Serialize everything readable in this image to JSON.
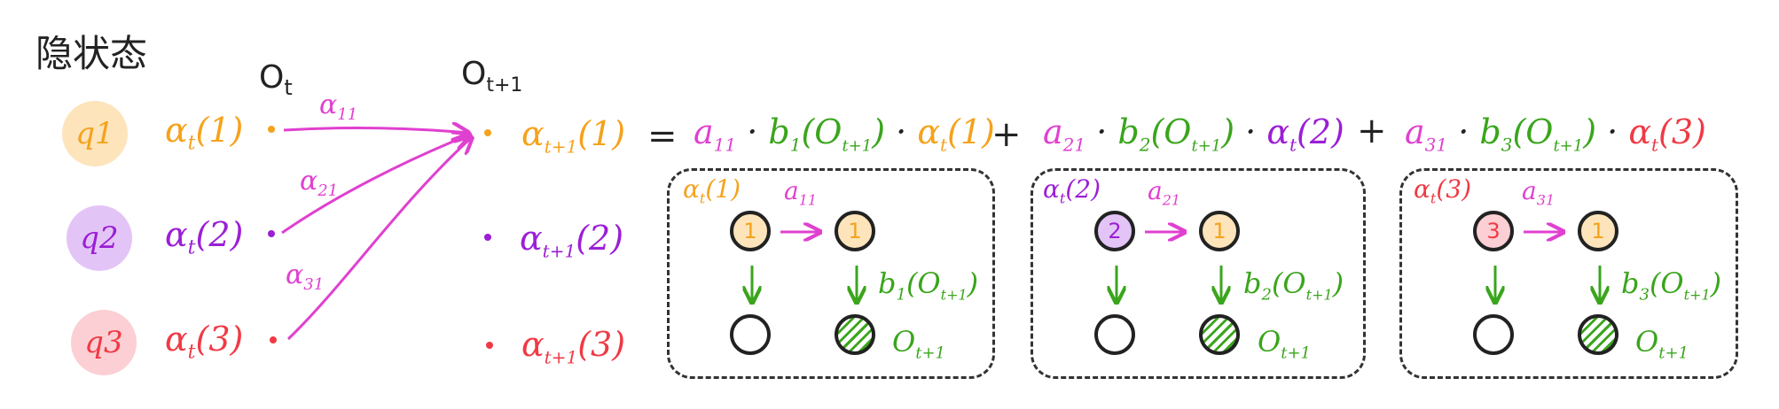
{
  "header": {
    "hidden_state": "隐状态",
    "obs_t": "O",
    "obs_t_sub": "t",
    "obs_t1": "O",
    "obs_t1_sub": "t+1"
  },
  "states": [
    {
      "label": "q1",
      "alpha": "α",
      "alpha_sub": "t",
      "alpha_arg": "(1)",
      "next_alpha": "α",
      "next_sub": "t+1",
      "next_arg": "(1)",
      "color": "#f5a21b",
      "fill": "#fde4bb"
    },
    {
      "label": "q2",
      "alpha": "α",
      "alpha_sub": "t",
      "alpha_arg": "(2)",
      "next_alpha": "α",
      "next_sub": "t+1",
      "next_arg": "(2)",
      "color": "#9b1fd6",
      "fill": "#e3c4f7"
    },
    {
      "label": "q3",
      "alpha": "α",
      "alpha_sub": "t",
      "alpha_arg": "(3)",
      "next_alpha": "α",
      "next_sub": "t+1",
      "next_arg": "(3)",
      "color": "#ef3a45",
      "fill": "#fbcfd3"
    }
  ],
  "arrows": {
    "a11": "α",
    "a11_sub": "11",
    "a21": "α",
    "a21_sub": "21",
    "a31": "α",
    "a31_sub": "31"
  },
  "equation": {
    "equals": "=",
    "plus": "+",
    "terms": [
      {
        "a": "a",
        "a_sub": "11",
        "b": "b",
        "b_sub": "1",
        "b_arg": "(O",
        "b_arg_sub": "t+1",
        "b_close": ")",
        "alpha": "α",
        "alpha_sub": "t",
        "alpha_arg": "(1)"
      },
      {
        "a": "a",
        "a_sub": "21",
        "b": "b",
        "b_sub": "2",
        "b_arg": "(O",
        "b_arg_sub": "t+1",
        "b_close": ")",
        "alpha": "α",
        "alpha_sub": "t",
        "alpha_arg": "(2)"
      },
      {
        "a": "a",
        "a_sub": "31",
        "b": "b",
        "b_sub": "3",
        "b_arg": "(O",
        "b_arg_sub": "t+1",
        "b_close": ")",
        "alpha": "α",
        "alpha_sub": "t",
        "alpha_arg": "(3)"
      }
    ],
    "dot": "·"
  },
  "panels": [
    {
      "alpha": "α",
      "alpha_sub": "t",
      "alpha_arg": "(1)",
      "a": "a",
      "a_sub": "11",
      "from": "1",
      "to": "1",
      "from_color": "#f5a21b",
      "from_fill": "#fde4bb",
      "emit": "b",
      "emit_sub": "1",
      "emit_arg": "(O",
      "emit_arg_sub": "t+1",
      "emit_close": ")",
      "obs": "O",
      "obs_sub": "t+1"
    },
    {
      "alpha": "α",
      "alpha_sub": "t",
      "alpha_arg": "(2)",
      "a": "a",
      "a_sub": "21",
      "from": "2",
      "to": "1",
      "from_color": "#9b1fd6",
      "from_fill": "#e3c4f7",
      "emit": "b",
      "emit_sub": "2",
      "emit_arg": "(O",
      "emit_arg_sub": "t+1",
      "emit_close": ")",
      "obs": "O",
      "obs_sub": "t+1"
    },
    {
      "alpha": "α",
      "alpha_sub": "t",
      "alpha_arg": "(3)",
      "a": "a",
      "a_sub": "31",
      "from": "3",
      "to": "1",
      "from_color": "#ef3a45",
      "from_fill": "#fbcfd3",
      "emit": "b",
      "emit_sub": "3",
      "emit_arg": "(O",
      "emit_arg_sub": "t+1",
      "emit_close": ")",
      "obs": "O",
      "obs_sub": "t+1"
    }
  ],
  "colors": {
    "pink": "#e040d0",
    "green": "#3aa51c",
    "orange": "#f5a21b",
    "purple": "#9b1fd6",
    "red": "#ef3a45",
    "ink": "#222222"
  }
}
